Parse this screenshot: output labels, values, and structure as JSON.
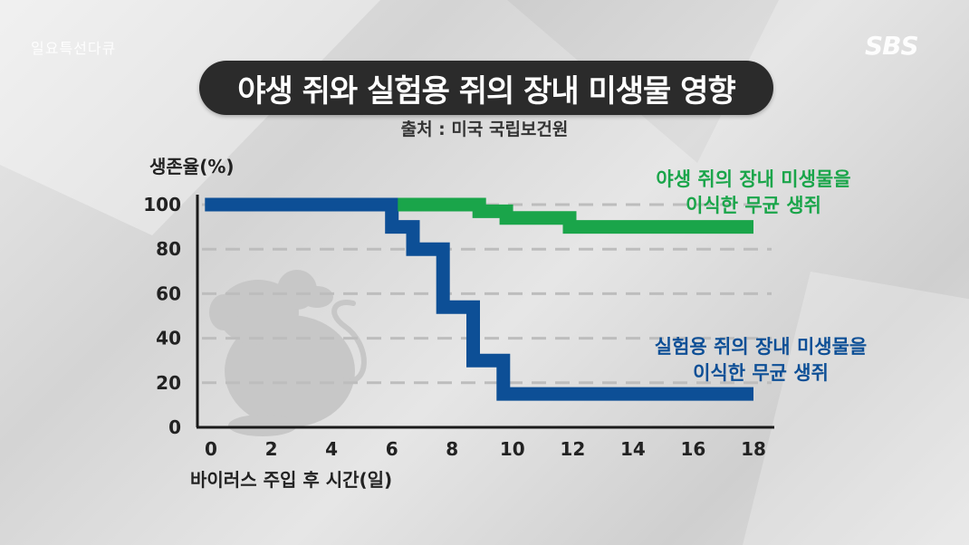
{
  "header": {
    "program_logo": "일요특선다큐",
    "broadcaster_logo": "SBS",
    "title": "야생 쥐와 실험용 쥐의 장내 미생물 영향",
    "source": "출처 : 미국 국립보건원"
  },
  "colors": {
    "green_series": "#1aa54a",
    "blue_series": "#0d4f96",
    "title_bg": "#2b2b2b"
  },
  "chart_data": {
    "type": "line",
    "step": true,
    "ylabel": "생존율(%)",
    "xlabel": "바이러스 주입 후 시간(일)",
    "xlim": [
      0,
      18
    ],
    "ylim": [
      0,
      100
    ],
    "xticks": [
      0,
      2,
      4,
      6,
      8,
      10,
      12,
      14,
      16,
      18
    ],
    "yticks": [
      0,
      20,
      40,
      60,
      80,
      100
    ],
    "grid": "dashed horizontal at 20, 40, 60, 80, 100",
    "series": [
      {
        "name": "야생 쥐의 장내 미생물을 이식한 무균 생쥐",
        "label_lines": [
          "야생 쥐의 장내 미생물을",
          "이식한 무균 생쥐"
        ],
        "color": "#1aa54a",
        "points": [
          [
            6.2,
            100
          ],
          [
            8.9,
            100
          ],
          [
            8.9,
            97
          ],
          [
            9.8,
            97
          ],
          [
            9.8,
            94
          ],
          [
            11.9,
            94
          ],
          [
            11.9,
            90
          ],
          [
            18,
            90
          ]
        ]
      },
      {
        "name": "실험용 쥐의 장내 미생물을 이식한 무균 생쥐",
        "label_lines": [
          "실험용 쥐의 장내 미생물을",
          "이식한 무균 생쥐"
        ],
        "color": "#0d4f96",
        "points": [
          [
            -0.2,
            100
          ],
          [
            6,
            100
          ],
          [
            6,
            90
          ],
          [
            6.7,
            90
          ],
          [
            6.7,
            80
          ],
          [
            7.7,
            80
          ],
          [
            7.7,
            54
          ],
          [
            8.7,
            54
          ],
          [
            8.7,
            30
          ],
          [
            9.7,
            30
          ],
          [
            9.7,
            15
          ],
          [
            18,
            15
          ]
        ]
      }
    ]
  }
}
